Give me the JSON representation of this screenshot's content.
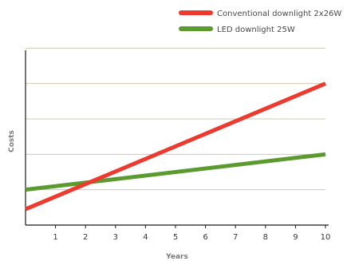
{
  "chart_data": {
    "type": "line",
    "title": "",
    "xlabel": "Years",
    "ylabel": "Costs",
    "x": [
      0,
      10
    ],
    "xticks": [
      1,
      2,
      3,
      4,
      5,
      6,
      7,
      8,
      9,
      10
    ],
    "xlim": [
      0,
      10
    ],
    "ylim": [
      0,
      6
    ],
    "yticks_labeled": false,
    "grid": "horizontal",
    "gridlines_y": [
      1,
      2,
      3,
      4,
      5
    ],
    "legend_position": "top-right",
    "series": [
      {
        "name": "Conventional downlight 2x26W",
        "color": "#ee3a2e",
        "values": [
          0.45,
          4.0
        ]
      },
      {
        "name": "LED downlight 25W",
        "color": "#5a9a2e",
        "values": [
          1.0,
          2.0
        ]
      }
    ]
  }
}
